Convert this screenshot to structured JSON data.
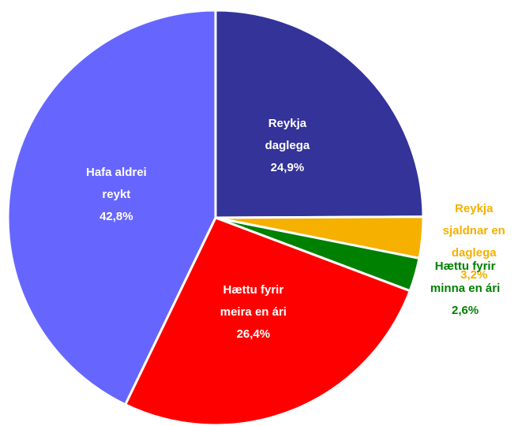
{
  "chart_data": {
    "type": "pie",
    "categories": [
      "Reykja daglega",
      "Reykja sjaldnar en daglega",
      "Hættu fyrir minna en ári",
      "Hættu fyrir meira en ári",
      "Hafa aldrei reykt"
    ],
    "values": [
      24.9,
      3.2,
      2.6,
      26.4,
      42.8
    ],
    "value_labels": [
      "24,9%",
      "3,2%",
      "2,6%",
      "26,4%",
      "42,8%"
    ],
    "colors": [
      "#333399",
      "#f5b000",
      "#008000",
      "#ff0000",
      "#6666ff"
    ]
  }
}
